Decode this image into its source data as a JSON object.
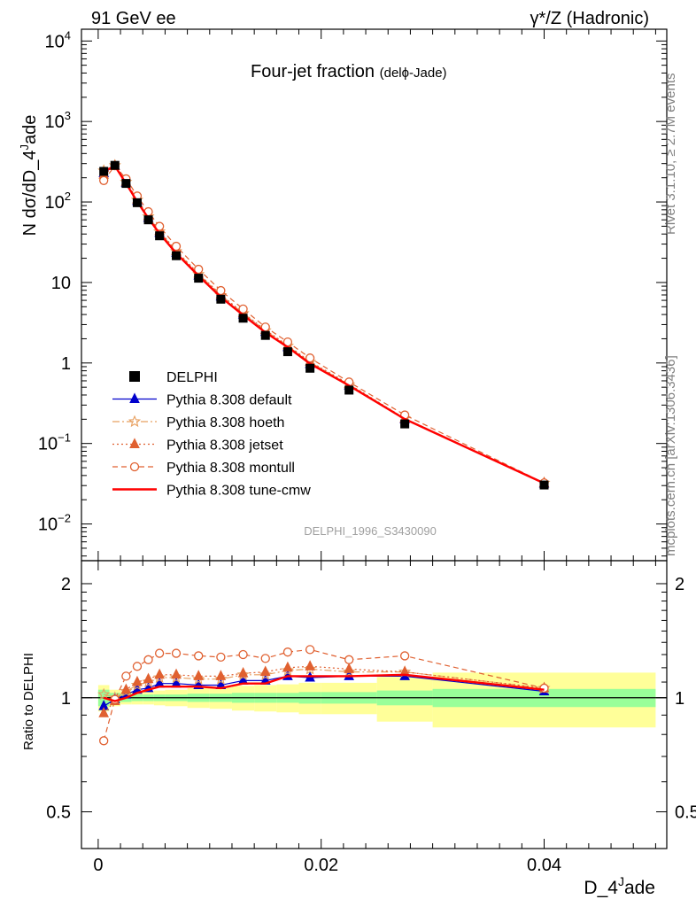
{
  "header": {
    "left": "91 GeV ee",
    "right": "γ*/Z (Hadronic)"
  },
  "side": {
    "top": "Rivet 3.1.10, ≥ 2.7M events",
    "bottom": "mcplots.cern.ch [arXiv:1306.3436]"
  },
  "chart_data": {
    "type": "line",
    "title": "Four-jet fraction",
    "title_sub": "(delϕ-Jade)",
    "watermark": "DELPHI_1996_S3430090",
    "xlabel": "D_4",
    "xlabel_sup": "J",
    "xlabel_tail": "ade",
    "ylabel": "N dσ/dD_4",
    "ylabel_sup": "J",
    "ylabel_tail": "ade",
    "ratio_ylabel": "Ratio to DELPHI",
    "xlim": [
      -0.0015,
      0.051
    ],
    "ylim": [
      0.0035,
      14000
    ],
    "yscale": "log",
    "ratio_ylim": [
      0.4,
      2.3
    ],
    "x_ticks": [
      "0",
      "0.02",
      "0.04"
    ],
    "y_ticks": [
      {
        "base": "10",
        "exp": "4",
        "value": 10000
      },
      {
        "base": "10",
        "exp": "3",
        "value": 1000
      },
      {
        "base": "10",
        "exp": "2",
        "value": 100
      },
      {
        "base": "10",
        "exp": "",
        "value": 10
      },
      {
        "base": "1",
        "exp": "",
        "value": 1
      },
      {
        "base": "10",
        "exp": "−1",
        "value": 0.1
      },
      {
        "base": "10",
        "exp": "−2",
        "value": 0.01
      }
    ],
    "ratio_ticks": [
      "0.5",
      "1",
      "2"
    ],
    "legend_position": "lower-left",
    "x": [
      0.0005,
      0.0015,
      0.0025,
      0.0035,
      0.0045,
      0.0055,
      0.007,
      0.009,
      0.011,
      0.013,
      0.015,
      0.017,
      0.019,
      0.0225,
      0.0275,
      0.04
    ],
    "data": {
      "name": "DELPHI",
      "values": [
        240,
        285,
        170,
        98,
        60,
        38,
        21.5,
        11.3,
        6.2,
        3.6,
        2.2,
        1.38,
        0.86,
        0.46,
        0.175,
        0.0305
      ]
    },
    "band_edges": [
      0,
      0.001,
      0.002,
      0.003,
      0.004,
      0.005,
      0.006,
      0.008,
      0.01,
      0.012,
      0.014,
      0.016,
      0.018,
      0.02,
      0.025,
      0.03,
      0.05
    ],
    "band_inner": [
      0.05,
      0.03,
      0.025,
      0.02,
      0.02,
      0.02,
      0.02,
      0.025,
      0.025,
      0.03,
      0.03,
      0.03,
      0.035,
      0.035,
      0.045,
      0.055
    ],
    "band_outer": [
      0.03,
      0.02,
      0.015,
      0.02,
      0.02,
      0.025,
      0.03,
      0.035,
      0.04,
      0.045,
      0.05,
      0.055,
      0.06,
      0.06,
      0.09,
      0.11
    ],
    "series": [
      {
        "name": "Pythia 8.308 default",
        "color": "#0000cc",
        "dash": "",
        "marker": "triangle",
        "fill": true,
        "ratio": [
          0.95,
          0.99,
          1.02,
          1.05,
          1.06,
          1.09,
          1.09,
          1.08,
          1.08,
          1.11,
          1.11,
          1.14,
          1.13,
          1.14,
          1.14,
          1.04
        ]
      },
      {
        "name": "Pythia 8.308 hoeth",
        "color": "#e8a060",
        "dash": "8,3,2,3",
        "marker": "star",
        "fill": false,
        "ratio": [
          1.02,
          1.0,
          1.04,
          1.08,
          1.1,
          1.13,
          1.13,
          1.12,
          1.12,
          1.15,
          1.15,
          1.18,
          1.19,
          1.17,
          1.17,
          1.06
        ]
      },
      {
        "name": "Pythia 8.308 jetset",
        "color": "#e06030",
        "dash": "2,3",
        "marker": "triangle",
        "fill": true,
        "ratio": [
          0.91,
          0.98,
          1.05,
          1.1,
          1.12,
          1.15,
          1.15,
          1.14,
          1.14,
          1.16,
          1.17,
          1.2,
          1.21,
          1.19,
          1.17,
          1.06
        ]
      },
      {
        "name": "Pythia 8.308 montull",
        "color": "#e06030",
        "dash": "6,4",
        "marker": "circle",
        "fill": false,
        "ratio": [
          0.77,
          0.99,
          1.14,
          1.21,
          1.26,
          1.31,
          1.31,
          1.29,
          1.28,
          1.3,
          1.27,
          1.32,
          1.34,
          1.26,
          1.29,
          1.06
        ]
      },
      {
        "name": "Pythia 8.308 tune-cmw",
        "color": "#ff0000",
        "dash": "",
        "marker": "none",
        "fill": false,
        "width": 2.4,
        "ratio": [
          1.0,
          0.98,
          1.0,
          1.03,
          1.05,
          1.07,
          1.07,
          1.07,
          1.06,
          1.09,
          1.09,
          1.14,
          1.14,
          1.14,
          1.15,
          1.05
        ]
      }
    ]
  }
}
